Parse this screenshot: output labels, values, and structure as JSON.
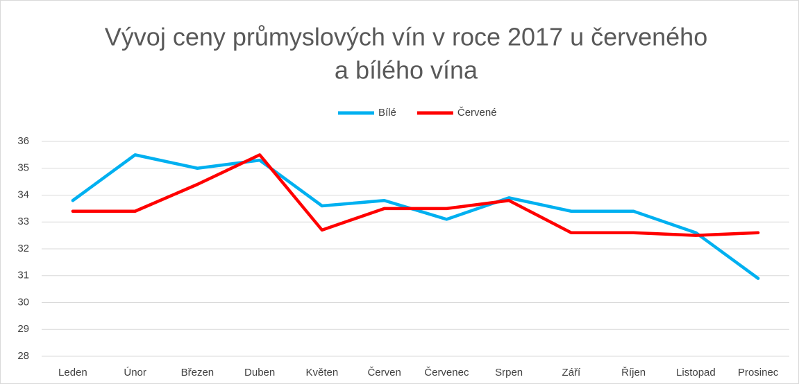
{
  "chart_data": {
    "type": "line",
    "title": [
      "Vývoj ceny průmyslových vín v roce 2017 u červeného",
      "a bílého vína"
    ],
    "categories": [
      "Leden",
      "Únor",
      "Březen",
      "Duben",
      "Květen",
      "Červen",
      "Červenec",
      "Srpen",
      "Září",
      "Říjen",
      "Listopad",
      "Prosinec"
    ],
    "series": [
      {
        "name": "Bílé",
        "color": "#00b0f0",
        "values": [
          33.8,
          35.5,
          35.0,
          35.3,
          33.6,
          33.8,
          33.1,
          33.9,
          33.4,
          33.4,
          32.6,
          30.9
        ]
      },
      {
        "name": "Červené",
        "color": "#ff0000",
        "values": [
          33.4,
          33.4,
          34.4,
          35.5,
          32.7,
          33.5,
          33.5,
          33.8,
          32.6,
          32.6,
          32.5,
          32.6
        ]
      }
    ],
    "ylim": [
      28,
      36
    ],
    "yticks": [
      28,
      29,
      30,
      31,
      32,
      33,
      34,
      35,
      36
    ],
    "grid": true,
    "legend": "top"
  }
}
